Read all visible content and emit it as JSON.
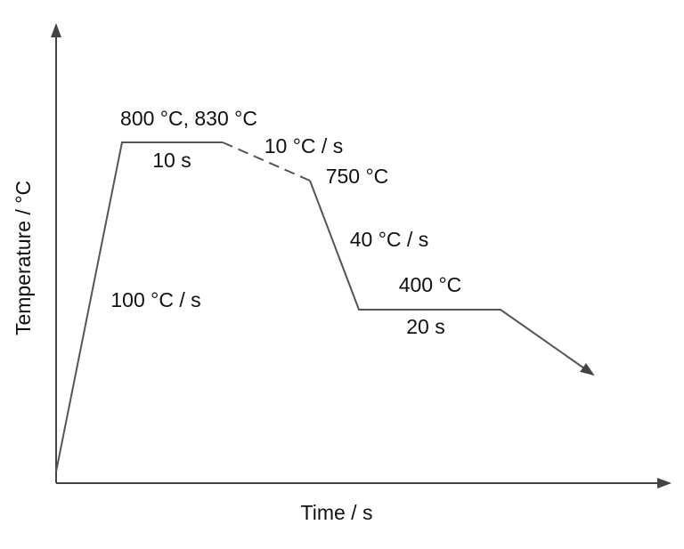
{
  "axes": {
    "x_label": "Time / s",
    "y_label": "Temperature / °C"
  },
  "annotations": [
    "800 °C, 830 °C",
    "10 s",
    "10 °C / s",
    "750 °C",
    "40 °C / s",
    "400 °C",
    "20 s",
    "100 °C / s"
  ]
}
